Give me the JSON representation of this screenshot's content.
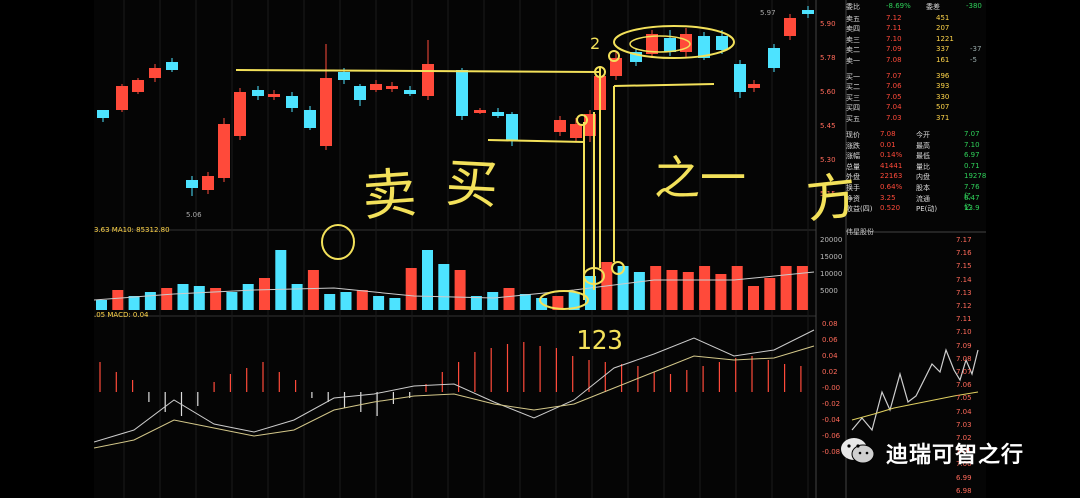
{
  "price_axis": [
    "5.90",
    "5.78",
    "5.60",
    "5.45",
    "5.30",
    "5.15"
  ],
  "candles_min_label": "5.06",
  "candles_max_label": "5.97",
  "vol_header": "3.63  MA10: 85312.80",
  "vol_axis": [
    "20000",
    "15000",
    "10000",
    "5000"
  ],
  "macd_header": ".05  MACD: 0.04",
  "macd_axis": [
    "0.08",
    "0.06",
    "0.04",
    "0.02",
    "-0.00",
    "-0.02",
    "-0.04",
    "-0.06",
    "-0.08"
  ],
  "orderbook": {
    "title_left": "委比",
    "title_val": "-8.69%",
    "title_right": "委差",
    "title_right_val": "-380",
    "asks": [
      {
        "label": "卖五",
        "price": "7.12",
        "qty": "451",
        "extra": ""
      },
      {
        "label": "卖四",
        "price": "7.11",
        "qty": "207",
        "extra": ""
      },
      {
        "label": "卖三",
        "price": "7.10",
        "qty": "1221",
        "extra": ""
      },
      {
        "label": "卖二",
        "price": "7.09",
        "qty": "337",
        "extra": "-37"
      },
      {
        "label": "卖一",
        "price": "7.08",
        "qty": "161",
        "extra": "-5"
      }
    ],
    "bids": [
      {
        "label": "买一",
        "price": "7.07",
        "qty": "396"
      },
      {
        "label": "买二",
        "price": "7.06",
        "qty": "393"
      },
      {
        "label": "买三",
        "price": "7.05",
        "qty": "330"
      },
      {
        "label": "买四",
        "price": "7.04",
        "qty": "507"
      },
      {
        "label": "买五",
        "price": "7.03",
        "qty": "371"
      }
    ]
  },
  "stats": [
    {
      "l1": "现价",
      "v1": "7.08",
      "l2": "今开",
      "v2": "7.07"
    },
    {
      "l1": "涨跌",
      "v1": "0.01",
      "l2": "最高",
      "v2": "7.10"
    },
    {
      "l1": "涨幅",
      "v1": "0.14%",
      "l2": "最低",
      "v2": "6.97"
    },
    {
      "l1": "总量",
      "v1": "41441",
      "l2": "量比",
      "v2": "0.71"
    },
    {
      "l1": "外盘",
      "v1": "22163",
      "l2": "内盘",
      "v2": "19278"
    },
    {
      "l1": "换手",
      "v1": "0.64%",
      "l2": "股本",
      "v2": "7.76亿"
    },
    {
      "l1": "净资",
      "v1": "3.25",
      "l2": "流通",
      "v2": "6.47亿"
    },
    {
      "l1": "收益(四)",
      "v1": "0.520",
      "l2": "PE(动)",
      "v2": "13.9"
    }
  ],
  "mini_title": "伟星股份",
  "mini_axis": [
    "7.17",
    "7.16",
    "7.15",
    "7.14",
    "7.13",
    "7.12",
    "7.11",
    "7.10",
    "7.09",
    "7.08",
    "7.07",
    "7.06",
    "7.05",
    "7.04",
    "7.03",
    "7.02",
    "7.01",
    "7.00",
    "6.99",
    "6.98"
  ],
  "handwriting": {
    "sell": "卖",
    "buy": "买",
    "zhi_yi": "之一",
    "fang": "方",
    "nums": "123",
    "two": "2"
  },
  "watermark": "迪瑞可智之行"
}
